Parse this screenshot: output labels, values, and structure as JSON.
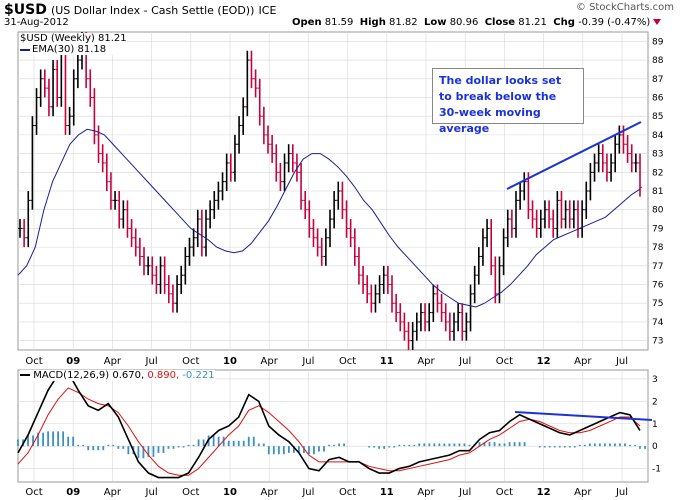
{
  "header": {
    "symbol": "$USD",
    "name": "(US Dollar Index - Cash Settle (EOD))",
    "exchange": "ICE",
    "date": "31-Aug-2012",
    "open_label": "Open",
    "open": "81.59",
    "high_label": "High",
    "high": "81.82",
    "low_label": "Low",
    "low": "80.96",
    "close_label": "Close",
    "close": "81.21",
    "chg_label": "Chg",
    "chg": "-0.39 (-0.47%)",
    "brand": "© StockCharts.com"
  },
  "legend": {
    "price_label": "$USD (Weekly) 81.21",
    "ema_label": "EMA(30) 81.18",
    "macd_label": "MACD(12,26,9)",
    "macd_value": "0.670,",
    "signal_value": "0.890,",
    "hist_value": "-0.221"
  },
  "annotation": {
    "text": "The dollar looks set to break below the 30-week moving average"
  },
  "colors": {
    "up_bar": "#000000",
    "down_bar": "#c8003c",
    "ema": "#1a1f8f",
    "macd": "#000000",
    "signal": "#e01010",
    "histogram": "#3b8fc4",
    "trendline": "#1b33d6",
    "grid": "#d8d8d8"
  },
  "chart_data": [
    {
      "type": "line",
      "title": "$USD (Weekly)",
      "x_ticks": [
        "Oct",
        "09",
        "Apr",
        "Jul",
        "Oct",
        "10",
        "Apr",
        "Jul",
        "Oct",
        "11",
        "Apr",
        "Jul",
        "Oct",
        "12",
        "Apr",
        "Jul"
      ],
      "ylim": [
        72.5,
        89.5
      ],
      "y_ticks": [
        73,
        74,
        75,
        76,
        77,
        78,
        79,
        80,
        81,
        82,
        83,
        84,
        85,
        86,
        87,
        88,
        89
      ],
      "series": [
        {
          "name": "$USD (Weekly)",
          "values": [
            79.0,
            78.5,
            80.5,
            84.5,
            86.0,
            87.0,
            86.5,
            85.5,
            87.5,
            86.0,
            88.5,
            84.5,
            85.0,
            87.0,
            88.0,
            89.0,
            87.0,
            86.0,
            84.0,
            83.0,
            82.5,
            81.5,
            80.5,
            80.5,
            79.5,
            80.0,
            79.0,
            78.5,
            78.0,
            77.5,
            77.0,
            77.0,
            76.5,
            76.0,
            77.0,
            76.0,
            75.5,
            75.0,
            76.0,
            76.5,
            77.5,
            78.0,
            78.5,
            79.5,
            78.0,
            79.5,
            80.0,
            80.5,
            81.0,
            81.5,
            82.5,
            82.0,
            83.5,
            84.5,
            85.5,
            88.0,
            87.0,
            86.5,
            85.0,
            84.0,
            83.5,
            83.0,
            82.0,
            81.5,
            82.5,
            83.0,
            82.5,
            82.0,
            80.5,
            80.0,
            79.0,
            78.5,
            78.0,
            77.5,
            78.5,
            79.5,
            80.5,
            81.0,
            80.0,
            79.0,
            78.5,
            77.5,
            76.5,
            76.0,
            75.5,
            75.0,
            75.5,
            76.0,
            76.5,
            76.0,
            75.0,
            74.5,
            74.0,
            73.5,
            73.0,
            73.5,
            74.0,
            74.5,
            74.0,
            74.5,
            75.5,
            75.0,
            74.5,
            74.0,
            73.5,
            74.0,
            74.5,
            73.5,
            74.0,
            75.5,
            76.5,
            77.5,
            78.5,
            79.0,
            77.0,
            75.5,
            77.0,
            78.5,
            79.5,
            79.0,
            80.5,
            81.0,
            81.5,
            80.0,
            79.5,
            79.0,
            79.5,
            80.0,
            79.5,
            79.0,
            80.5,
            79.5,
            80.0,
            79.5,
            80.0,
            79.0,
            80.0,
            81.0,
            82.0,
            82.5,
            83.0,
            82.5,
            82.0,
            82.5,
            83.5,
            84.0,
            83.5,
            83.0,
            82.5,
            82.5,
            81.2
          ]
        },
        {
          "name": "EMA(30)",
          "values": [
            76.5,
            77.0,
            78.0,
            80.0,
            81.5,
            82.5,
            83.5,
            84.0,
            84.3,
            84.2,
            84.0,
            83.5,
            83.0,
            82.5,
            82.0,
            81.5,
            81.0,
            80.5,
            80.0,
            79.5,
            79.0,
            78.7,
            78.4,
            78.0,
            77.8,
            77.7,
            77.8,
            78.2,
            78.8,
            79.4,
            80.2,
            81.1,
            82.0,
            82.7,
            83.0,
            83.0,
            82.7,
            82.3,
            81.8,
            81.2,
            80.5,
            80.0,
            79.3,
            78.6,
            78.0,
            77.5,
            77.0,
            76.5,
            76.0,
            75.6,
            75.3,
            75.0,
            74.9,
            74.8,
            75.0,
            75.3,
            75.6,
            76.0,
            76.5,
            77.0,
            77.6,
            78.0,
            78.4,
            78.6,
            78.8,
            79.0,
            79.2,
            79.4,
            79.6,
            80.0,
            80.4,
            80.8,
            81.1
          ]
        }
      ]
    },
    {
      "type": "line",
      "title": "MACD(12,26,9)",
      "x_ticks": [
        "Oct",
        "09",
        "Apr",
        "Jul",
        "Oct",
        "10",
        "Apr",
        "Jul",
        "Oct",
        "11",
        "Apr",
        "Jul",
        "Oct",
        "12",
        "Apr",
        "Jul"
      ],
      "ylim": [
        -1.6,
        3.4
      ],
      "y_ticks": [
        -1,
        0,
        1,
        2,
        3
      ],
      "series": [
        {
          "name": "MACD",
          "values": [
            -0.3,
            0.5,
            1.5,
            2.5,
            3.2,
            3.3,
            2.5,
            1.8,
            1.6,
            1.9,
            1.3,
            0.3,
            -0.7,
            -1.2,
            -1.4,
            -1.4,
            -1.4,
            -1.2,
            -0.5,
            0.3,
            0.7,
            0.9,
            1.3,
            2.3,
            2.0,
            0.9,
            0.5,
            0.2,
            -0.3,
            -1.0,
            -1.1,
            -0.6,
            -0.5,
            -0.7,
            -0.7,
            -1.0,
            -1.2,
            -1.2,
            -1.0,
            -0.9,
            -0.7,
            -0.6,
            -0.5,
            -0.4,
            -0.2,
            -0.2,
            0.3,
            0.6,
            0.7,
            1.1,
            1.4,
            1.2,
            1.0,
            0.8,
            0.6,
            0.5,
            0.7,
            0.9,
            1.1,
            1.3,
            1.5,
            1.4,
            0.7
          ]
        },
        {
          "name": "Signal",
          "values": [
            -0.8,
            -0.3,
            0.5,
            1.4,
            2.1,
            2.6,
            2.4,
            2.1,
            1.9,
            1.8,
            1.5,
            0.9,
            0.2,
            -0.4,
            -0.9,
            -1.2,
            -1.3,
            -1.3,
            -1.0,
            -0.5,
            0.0,
            0.5,
            0.9,
            1.6,
            1.8,
            1.5,
            1.1,
            0.7,
            0.2,
            -0.4,
            -0.7,
            -0.7,
            -0.7,
            -0.7,
            -0.7,
            -0.9,
            -1.0,
            -1.1,
            -1.1,
            -1.0,
            -0.9,
            -0.8,
            -0.7,
            -0.6,
            -0.4,
            -0.3,
            0.0,
            0.3,
            0.5,
            0.8,
            1.1,
            1.2,
            1.1,
            0.9,
            0.7,
            0.6,
            0.6,
            0.7,
            0.9,
            1.1,
            1.3,
            1.3,
            0.9
          ]
        }
      ]
    }
  ]
}
